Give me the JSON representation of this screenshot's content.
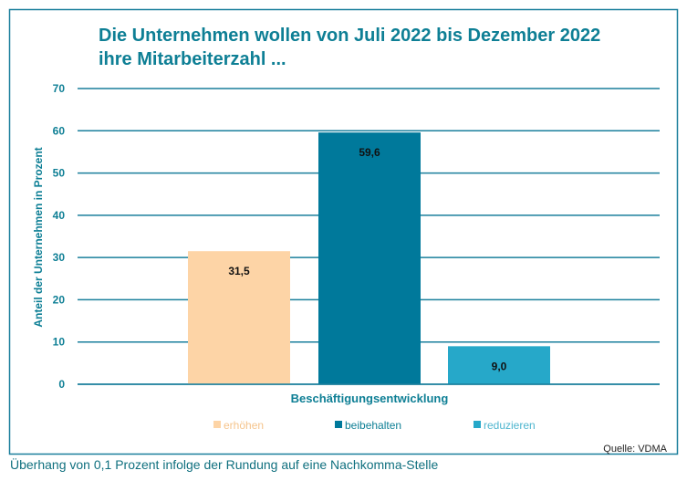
{
  "chart_data": {
    "type": "bar",
    "title": "Die Unternehmen wollen von Juli 2022 bis Dezember 2022 ihre  Mitarbeiterzahl ...",
    "title_lines": [
      "Die Unternehmen wollen von Juli 2022 bis Dezember 2022",
      "ihre  Mitarbeiterzahl ..."
    ],
    "xlabel": "Beschäftigungsentwicklung",
    "ylabel": "Anteil der Unternehmen in Prozent",
    "ylim": [
      0,
      70
    ],
    "yticks": [
      0,
      10,
      20,
      30,
      40,
      50,
      60,
      70
    ],
    "grid": true,
    "legend_position": "bottom",
    "categories": [
      "erhöhen",
      "beibehalten",
      "reduzieren"
    ],
    "values": [
      31.5,
      59.6,
      9.0
    ],
    "data_labels": [
      "31,5",
      "59,6",
      "9,0"
    ],
    "colors": [
      "#FDD4A6",
      "#00799B",
      "#26A8C9"
    ],
    "grid_color": "#1a7f9c",
    "source": "Quelle: VDMA"
  },
  "footnote": "Überhang von 0,1 Prozent infolge der Rundung auf eine Nachkomma-Stelle"
}
